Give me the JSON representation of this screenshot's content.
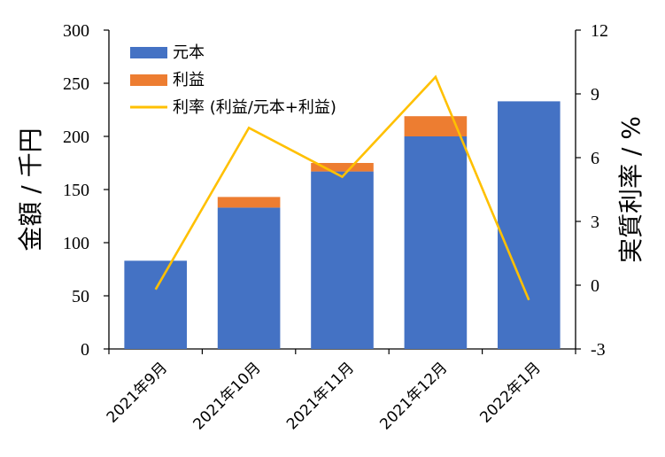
{
  "chart_data": {
    "type": "bar",
    "categories": [
      "2021年9月",
      "2021年10月",
      "2021年11月",
      "2021年12月",
      "2022年1月"
    ],
    "series": [
      {
        "name": "元本",
        "axis": "left",
        "kind": "bar",
        "values": [
          83,
          133,
          167,
          200,
          233
        ],
        "color": "#4472C4"
      },
      {
        "name": "利益",
        "axis": "left",
        "kind": "bar",
        "values": [
          0,
          10,
          8,
          19,
          0
        ],
        "color": "#ED7D31"
      },
      {
        "name": "利率 (利益/元本+利益)",
        "axis": "right",
        "kind": "line",
        "values": [
          -0.2,
          7.4,
          5.1,
          9.8,
          -0.7
        ],
        "color": "#FFC000"
      }
    ],
    "ylabel": "金額 / 千円",
    "y2label": "実質利率 / %",
    "ylim": [
      0,
      300
    ],
    "y2lim": [
      -3,
      12
    ],
    "yticks": [
      0,
      50,
      100,
      150,
      200,
      250,
      300
    ],
    "y2ticks": [
      -3,
      0,
      3,
      6,
      9,
      12
    ],
    "legend_position": "top-left",
    "grid": false
  }
}
